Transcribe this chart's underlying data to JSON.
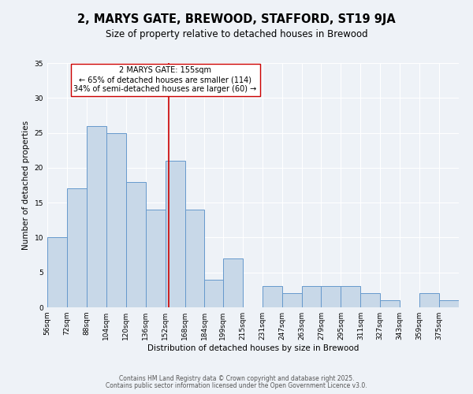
{
  "title": "2, MARYS GATE, BREWOOD, STAFFORD, ST19 9JA",
  "subtitle": "Size of property relative to detached houses in Brewood",
  "xlabel": "Distribution of detached houses by size in Brewood",
  "ylabel": "Number of detached properties",
  "bin_labels": [
    "56sqm",
    "72sqm",
    "88sqm",
    "104sqm",
    "120sqm",
    "136sqm",
    "152sqm",
    "168sqm",
    "184sqm",
    "199sqm",
    "215sqm",
    "231sqm",
    "247sqm",
    "263sqm",
    "279sqm",
    "295sqm",
    "311sqm",
    "327sqm",
    "343sqm",
    "359sqm",
    "375sqm"
  ],
  "bin_edges": [
    56,
    72,
    88,
    104,
    120,
    136,
    152,
    168,
    184,
    199,
    215,
    231,
    247,
    263,
    279,
    295,
    311,
    327,
    343,
    359,
    375,
    391
  ],
  "counts": [
    10,
    17,
    26,
    25,
    18,
    14,
    21,
    14,
    4,
    7,
    0,
    3,
    2,
    3,
    3,
    3,
    2,
    1,
    0,
    2,
    1
  ],
  "bar_color": "#c8d8e8",
  "bar_edge_color": "#6699cc",
  "vline_x": 155,
  "vline_color": "#cc0000",
  "annotation_line1": "2 MARYS GATE: 155sqm",
  "annotation_line2": "← 65% of detached houses are smaller (114)",
  "annotation_line3": "34% of semi-detached houses are larger (60) →",
  "annotation_box_edge_color": "#cc0000",
  "annotation_box_face_color": "#ffffff",
  "ylim": [
    0,
    35
  ],
  "yticks": [
    0,
    5,
    10,
    15,
    20,
    25,
    30,
    35
  ],
  "footer_line1": "Contains HM Land Registry data © Crown copyright and database right 2025.",
  "footer_line2": "Contains public sector information licensed under the Open Government Licence v3.0.",
  "background_color": "#eef2f7",
  "grid_color": "#ffffff",
  "title_fontsize": 10.5,
  "subtitle_fontsize": 8.5,
  "axis_label_fontsize": 7.5,
  "tick_fontsize": 6.5,
  "annotation_fontsize": 7,
  "footer_fontsize": 5.5
}
